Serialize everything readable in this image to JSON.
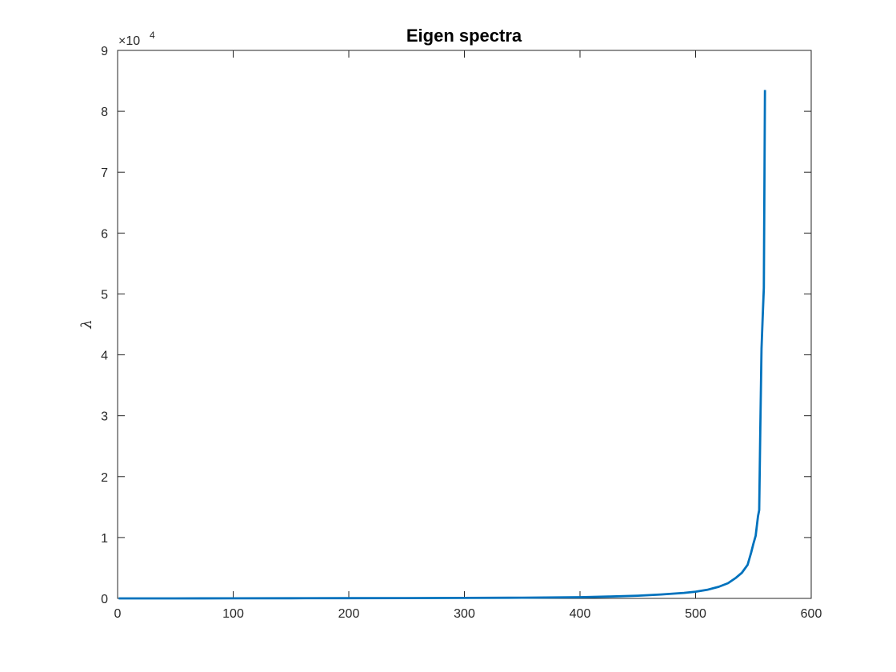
{
  "chart_data": {
    "type": "line",
    "title": "Eigen spectra",
    "xlabel": "",
    "ylabel": "λ",
    "xlim": [
      0,
      600
    ],
    "ylim": [
      0,
      90000
    ],
    "x_ticks": [
      0,
      100,
      200,
      300,
      400,
      500,
      600
    ],
    "y_tick_values": [
      0,
      10000,
      20000,
      30000,
      40000,
      50000,
      60000,
      70000,
      80000,
      90000
    ],
    "y_tick_labels": [
      "0",
      "1",
      "2",
      "3",
      "4",
      "5",
      "6",
      "7",
      "8",
      "9"
    ],
    "y_exponent_label": {
      "base": "×10",
      "power": "4"
    },
    "grid": false,
    "line_color": "#0072BD",
    "series": [
      {
        "x": [
          1,
          50,
          100,
          150,
          200,
          250,
          300,
          350,
          400,
          425,
          450,
          470,
          490,
          500,
          510,
          520,
          528,
          535,
          540,
          545,
          548,
          550,
          552,
          554,
          555,
          556,
          557,
          558,
          559,
          560
        ],
        "values": [
          2,
          5,
          10,
          20,
          35,
          55,
          80,
          120,
          200,
          300,
          450,
          650,
          900,
          1100,
          1400,
          1900,
          2500,
          3400,
          4200,
          5500,
          7500,
          9000,
          10300,
          13500,
          14500,
          28000,
          41000,
          46000,
          51000,
          83500
        ]
      }
    ]
  }
}
